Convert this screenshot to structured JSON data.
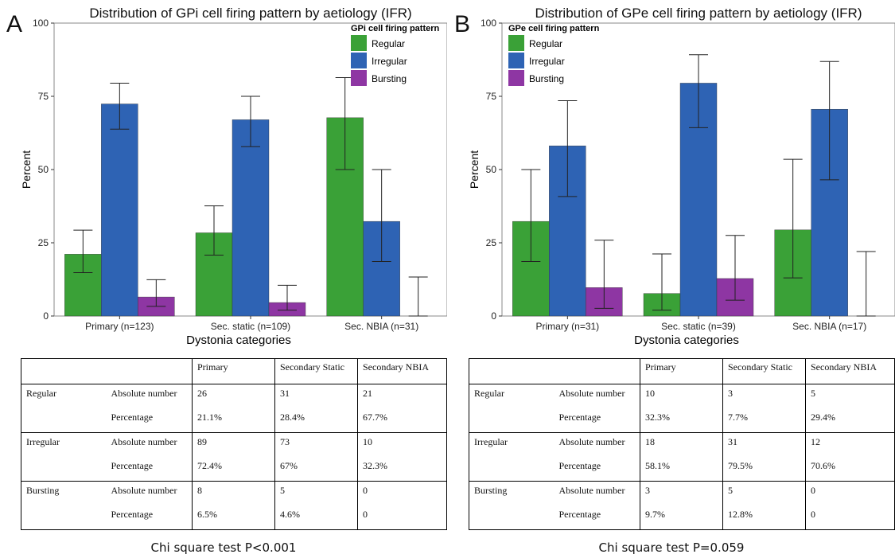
{
  "panels": [
    {
      "letter": "A",
      "title": "Distribution of GPi cell firing pattern by aetiology (IFR)",
      "chi": "Chi square test P<0.001",
      "table": {
        "header": [
          "Primary",
          "Secondary Static",
          "Secondary NBIA"
        ],
        "label_abs": "Absolute number",
        "label_pct": "Percentage",
        "rows": [
          {
            "group": "Regular",
            "abs": [
              "26",
              "31",
              "21"
            ],
            "pct": [
              "21.1%",
              "28.4%",
              "67.7%"
            ]
          },
          {
            "group": "Irregular",
            "abs": [
              "89",
              "73",
              "10"
            ],
            "pct": [
              "72.4%",
              "67%",
              "32.3%"
            ]
          },
          {
            "group": "Bursting",
            "abs": [
              "8",
              "5",
              "0"
            ],
            "pct": [
              "6.5%",
              "4.6%",
              "0"
            ]
          }
        ]
      }
    },
    {
      "letter": "B",
      "title": "Distribution of GPe cell firing pattern by aetiology (IFR)",
      "chi": "Chi square test P=0.059",
      "table": {
        "header": [
          "Primary",
          "Secondary Static",
          "Secondary NBIA"
        ],
        "label_abs": "Absolute number",
        "label_pct": "Percentage",
        "rows": [
          {
            "group": "Regular",
            "abs": [
              "10",
              "3",
              "5"
            ],
            "pct": [
              "32.3%",
              "7.7%",
              "29.4%"
            ]
          },
          {
            "group": "Irregular",
            "abs": [
              "18",
              "31",
              "12"
            ],
            "pct": [
              "58.1%",
              "79.5%",
              "70.6%"
            ]
          },
          {
            "group": "Bursting",
            "abs": [
              "3",
              "5",
              "0"
            ],
            "pct": [
              "9.7%",
              "12.8%",
              "0"
            ]
          }
        ]
      }
    }
  ],
  "colors": {
    "Regular": "#3aa137",
    "Irregular": "#2e63b4",
    "Bursting": "#8e36a3"
  },
  "chart_data": [
    {
      "type": "bar",
      "title": "Distribution of GPi cell firing pattern by aetiology (IFR)",
      "xlabel": "Dystonia categories",
      "ylabel": "Percent",
      "ylim": [
        0,
        100
      ],
      "yticks": [
        0,
        25,
        50,
        75,
        100
      ],
      "categories": [
        "Primary (n=123)",
        "Sec. static (n=109)",
        "Sec. NBIA (n=31)"
      ],
      "legend_title": "GPi cell firing pattern",
      "legend_position": "top-right",
      "series": [
        {
          "name": "Regular",
          "values": [
            21.1,
            28.4,
            67.7
          ],
          "err_low": [
            14.8,
            20.8,
            50.0
          ],
          "err_high": [
            29.3,
            37.6,
            81.4
          ]
        },
        {
          "name": "Irregular",
          "values": [
            72.4,
            67.0,
            32.3
          ],
          "err_low": [
            63.8,
            57.8,
            18.6
          ],
          "err_high": [
            79.5,
            75.0,
            50.0
          ]
        },
        {
          "name": "Bursting",
          "values": [
            6.5,
            4.6,
            0
          ],
          "err_low": [
            3.3,
            2.0,
            0
          ],
          "err_high": [
            12.4,
            10.5,
            13.3
          ]
        }
      ]
    },
    {
      "type": "bar",
      "title": "Distribution of GPe cell firing pattern by aetiology (IFR)",
      "xlabel": "Dystonia categories",
      "ylabel": "Percent",
      "ylim": [
        0,
        100
      ],
      "yticks": [
        0,
        25,
        50,
        75,
        100
      ],
      "categories": [
        "Primary (n=31)",
        "Sec. static (n=39)",
        "Sec. NBIA (n=17)"
      ],
      "legend_title": "GPe cell firing pattern",
      "legend_position": "top-left",
      "series": [
        {
          "name": "Regular",
          "values": [
            32.3,
            7.7,
            29.4
          ],
          "err_low": [
            18.6,
            2.0,
            13.0
          ],
          "err_high": [
            50.0,
            21.2,
            53.5
          ]
        },
        {
          "name": "Irregular",
          "values": [
            58.1,
            79.5,
            70.6
          ],
          "err_low": [
            40.8,
            64.3,
            46.5
          ],
          "err_high": [
            73.5,
            89.2,
            86.9
          ]
        },
        {
          "name": "Bursting",
          "values": [
            9.7,
            12.8,
            0
          ],
          "err_low": [
            2.6,
            5.4,
            0
          ],
          "err_high": [
            25.9,
            27.5,
            22.0
          ]
        }
      ]
    }
  ]
}
